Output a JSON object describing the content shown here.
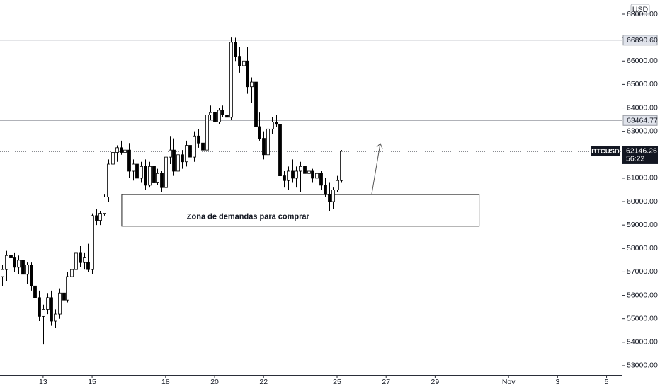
{
  "chart_data": {
    "type": "candlestick",
    "symbol": "BTCUSD",
    "currency": "USD",
    "x": [
      11.33,
      11.5,
      11.67,
      11.83,
      12,
      12.17,
      12.33,
      12.5,
      12.67,
      12.83,
      13,
      13.17,
      13.33,
      13.5,
      13.67,
      13.83,
      14,
      14.17,
      14.33,
      14.5,
      14.67,
      14.83,
      15,
      15.17,
      15.33,
      15.5,
      15.67,
      15.83,
      16,
      16.17,
      16.33,
      16.5,
      16.67,
      16.83,
      17,
      17.17,
      17.33,
      17.5,
      17.67,
      17.83,
      18,
      18.17,
      18.33,
      18.5,
      18.67,
      18.83,
      19,
      19.17,
      19.33,
      19.5,
      19.67,
      19.83,
      20,
      20.17,
      20.33,
      20.5,
      20.67,
      20.83,
      21,
      21.17,
      21.33,
      21.5,
      21.67,
      21.83,
      22,
      22.17,
      22.33,
      22.5,
      22.67,
      22.83,
      23,
      23.17,
      23.33,
      23.5,
      23.67,
      23.83,
      24,
      24.17,
      24.33,
      24.5,
      24.67,
      24.83,
      25,
      25.17
    ],
    "open": [
      56800,
      57100,
      57700,
      57600,
      57200,
      57500,
      56900,
      57300,
      56400,
      55900,
      55100,
      55400,
      55900,
      54900,
      55200,
      56100,
      55800,
      56800,
      57100,
      57800,
      57400,
      57400,
      57100,
      59400,
      59200,
      59500,
      60200,
      61600,
      62100,
      62300,
      62100,
      62200,
      61300,
      61600,
      61000,
      61500,
      60700,
      61500,
      60800,
      61200,
      60600,
      61900,
      62200,
      61300,
      62000,
      61700,
      62400,
      61900,
      62800,
      62500,
      62200,
      63700,
      63800,
      63400,
      63900,
      63700,
      63600,
      66800,
      66200,
      65800,
      66000,
      64900,
      65100,
      63200,
      62700,
      62000,
      63100,
      63400,
      63300,
      61100,
      60900,
      61300,
      61000,
      61300,
      61500,
      61200,
      61300,
      61000,
      61200,
      60700,
      60300,
      60000,
      60500,
      60900
    ],
    "high": [
      57300,
      57900,
      58000,
      57800,
      57700,
      57700,
      57400,
      57400,
      56600,
      56200,
      55600,
      56100,
      56200,
      55400,
      56300,
      56700,
      57000,
      57300,
      58200,
      58100,
      57800,
      58200,
      59500,
      59700,
      59600,
      60300,
      61800,
      62900,
      62400,
      62600,
      62300,
      62500,
      61800,
      61800,
      61700,
      61800,
      61700,
      61600,
      61400,
      61300,
      62200,
      62800,
      62700,
      62300,
      62200,
      62600,
      62500,
      63000,
      63100,
      62900,
      63800,
      64100,
      64000,
      64000,
      64100,
      64000,
      66999,
      66990,
      66600,
      66400,
      66600,
      65300,
      65200,
      63800,
      63000,
      63300,
      63600,
      63700,
      63500,
      61300,
      61500,
      61800,
      61500,
      61700,
      61600,
      61500,
      61400,
      61400,
      61300,
      61000,
      60800,
      60600,
      61100,
      62200
    ],
    "low": [
      56400,
      56600,
      57500,
      57000,
      56900,
      56700,
      56500,
      56200,
      55700,
      54900,
      53900,
      55200,
      54700,
      54600,
      55000,
      55600,
      55700,
      56500,
      56900,
      57200,
      57100,
      57000,
      56900,
      59000,
      59000,
      59400,
      60000,
      61200,
      61700,
      62000,
      61600,
      61000,
      60900,
      60800,
      60800,
      60500,
      60600,
      60600,
      60700,
      60400,
      59000,
      61600,
      61100,
      59000,
      61400,
      61500,
      61600,
      61700,
      62300,
      62000,
      62100,
      63500,
      63200,
      63300,
      63600,
      63500,
      63500,
      66000,
      65500,
      65500,
      64600,
      64200,
      63000,
      62600,
      61800,
      61700,
      62900,
      63200,
      60900,
      60600,
      60500,
      60800,
      60600,
      60400,
      61000,
      60900,
      60800,
      60700,
      60500,
      60200,
      59600,
      59700,
      60400,
      60800
    ],
    "close": [
      57100,
      57700,
      57600,
      57200,
      57500,
      56900,
      57300,
      56400,
      55900,
      55100,
      55400,
      55900,
      54900,
      55200,
      56100,
      55800,
      56800,
      57100,
      57800,
      57400,
      57600,
      57100,
      59400,
      59200,
      59500,
      60200,
      61600,
      62100,
      62300,
      62100,
      62200,
      61300,
      61600,
      61000,
      61500,
      60700,
      61500,
      60800,
      61200,
      60600,
      61900,
      62200,
      61300,
      62000,
      61700,
      62400,
      61900,
      62800,
      62500,
      62200,
      63700,
      63800,
      63400,
      63900,
      63700,
      63600,
      66800,
      66200,
      65800,
      66000,
      64900,
      65100,
      63200,
      62700,
      62000,
      63100,
      63400,
      63300,
      61100,
      60900,
      61300,
      61000,
      61300,
      61500,
      61200,
      61300,
      61000,
      61200,
      60700,
      60300,
      60000,
      60500,
      60900,
      62146.26
    ],
    "up_color": "#ffffff",
    "down_color": "#000000",
    "border_color": "#000000",
    "ylim": [
      52606,
      68604
    ],
    "yticks": [
      {
        "value": 53000,
        "label": "53000.00"
      },
      {
        "value": 54000,
        "label": "54000.00"
      },
      {
        "value": 55000,
        "label": "55000.00"
      },
      {
        "value": 56000,
        "label": "56000.00"
      },
      {
        "value": 57000,
        "label": "57000.00"
      },
      {
        "value": 58000,
        "label": "58000.00"
      },
      {
        "value": 59000,
        "label": "59000.00"
      },
      {
        "value": 60000,
        "label": "60000.00"
      },
      {
        "value": 61000,
        "label": "61000.00"
      },
      {
        "value": 62000,
        "label": "62000.00"
      },
      {
        "value": 63000,
        "label": "63000.00"
      },
      {
        "value": 64000,
        "label": "64000.00"
      },
      {
        "value": 65000,
        "label": "65000.00"
      },
      {
        "value": 66000,
        "label": "66000.00"
      },
      {
        "value": 67000,
        "label": "67000.00"
      },
      {
        "value": 68000,
        "label": "68000.00"
      }
    ],
    "xlim": [
      11.24,
      36.62
    ],
    "xticks": [
      13,
      15,
      18,
      20,
      22,
      25,
      27,
      29,
      {
        "value": 32,
        "label": "Nov"
      },
      {
        "value": 34,
        "label": "3"
      },
      {
        "value": 36,
        "label": "5"
      }
    ],
    "hlines": [
      {
        "value": 66890.6,
        "label": "66890.60"
      },
      {
        "value": 63464.77,
        "label": "63464.77"
      }
    ],
    "last_price": {
      "value": 62146.26,
      "countdown": "56:22"
    },
    "zone": {
      "text": "Zona de demandas para comprar",
      "ylim": [
        58950,
        60300
      ],
      "xlim": [
        16.21,
        30.8
      ]
    }
  }
}
